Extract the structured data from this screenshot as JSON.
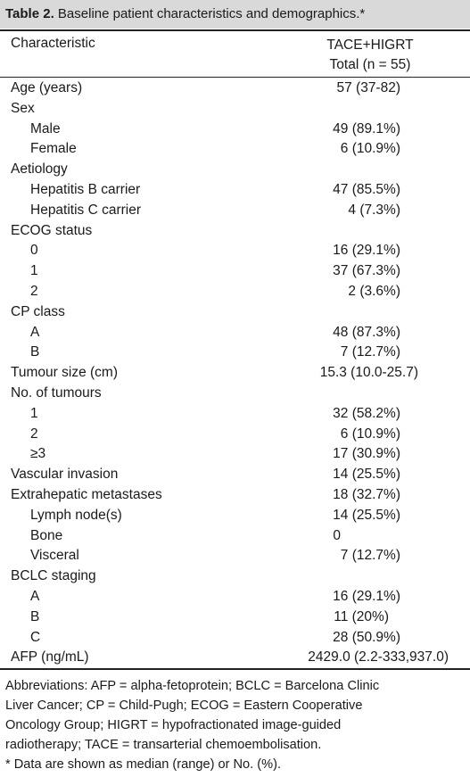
{
  "caption": {
    "label": "Table 2.",
    "text": " Baseline patient characteristics and demographics.*"
  },
  "header": {
    "col1": "Characteristic",
    "col2_line1": "TACE+HIGRT",
    "col2_line2": "Total (n = 55)"
  },
  "rows": [
    {
      "label": "Age (years)",
      "value": "57 (37-82)"
    },
    {
      "label": "Sex",
      "value": ""
    },
    {
      "label": "Male",
      "value": "49 (89.1%)"
    },
    {
      "label": "Female",
      "value": "6 (10.9%)"
    },
    {
      "label": "Aetiology",
      "value": ""
    },
    {
      "label": "Hepatitis B carrier",
      "value": "47 (85.5%)"
    },
    {
      "label": "Hepatitis C carrier",
      "value": "4 (7.3%)"
    },
    {
      "label": "ECOG status",
      "value": ""
    },
    {
      "label": "0",
      "value": "16 (29.1%)"
    },
    {
      "label": "1",
      "value": "37 (67.3%)"
    },
    {
      "label": "2",
      "value": "2 (3.6%)"
    },
    {
      "label": "CP class",
      "value": ""
    },
    {
      "label": "A",
      "value": "48 (87.3%)"
    },
    {
      "label": "B",
      "value": "7 (12.7%)"
    },
    {
      "label": "Tumour size (cm)",
      "value": "15.3 (10.0-25.7)"
    },
    {
      "label": "No. of tumours",
      "value": ""
    },
    {
      "label": "1",
      "value": "32 (58.2%)"
    },
    {
      "label": "2",
      "value": "6 (10.9%)"
    },
    {
      "label": "≥3",
      "value": "17 (30.9%)"
    },
    {
      "label": "Vascular invasion",
      "value": "14 (25.5%)"
    },
    {
      "label": "Extrahepatic metastases",
      "value": "18 (32.7%)"
    },
    {
      "label": "Lymph node(s)",
      "value": "14 (25.5%)"
    },
    {
      "label": "Bone",
      "value": "0"
    },
    {
      "label": "Visceral",
      "value": "7 (12.7%)"
    },
    {
      "label": "BCLC staging",
      "value": ""
    },
    {
      "label": "A",
      "value": "16 (29.1%)"
    },
    {
      "label": "B",
      "value": "11 (20%)"
    },
    {
      "label": "C",
      "value": "28 (50.9%)"
    },
    {
      "label": "AFP (ng/mL)",
      "value": "2429.0 (2.2-333,937.0)"
    }
  ],
  "footnote": {
    "lines": [
      "Abbreviations: AFP = alpha-fetoprotein; BCLC = Barcelona Clinic",
      "Liver Cancer; CP = Child-Pugh; ECOG = Eastern Cooperative",
      "Oncology Group; HIGRT = hypofractionated image-guided",
      "radiotherapy; TACE = transarterial chemoembolisation.",
      "* Data are shown as median (range) or No. (%)."
    ]
  }
}
